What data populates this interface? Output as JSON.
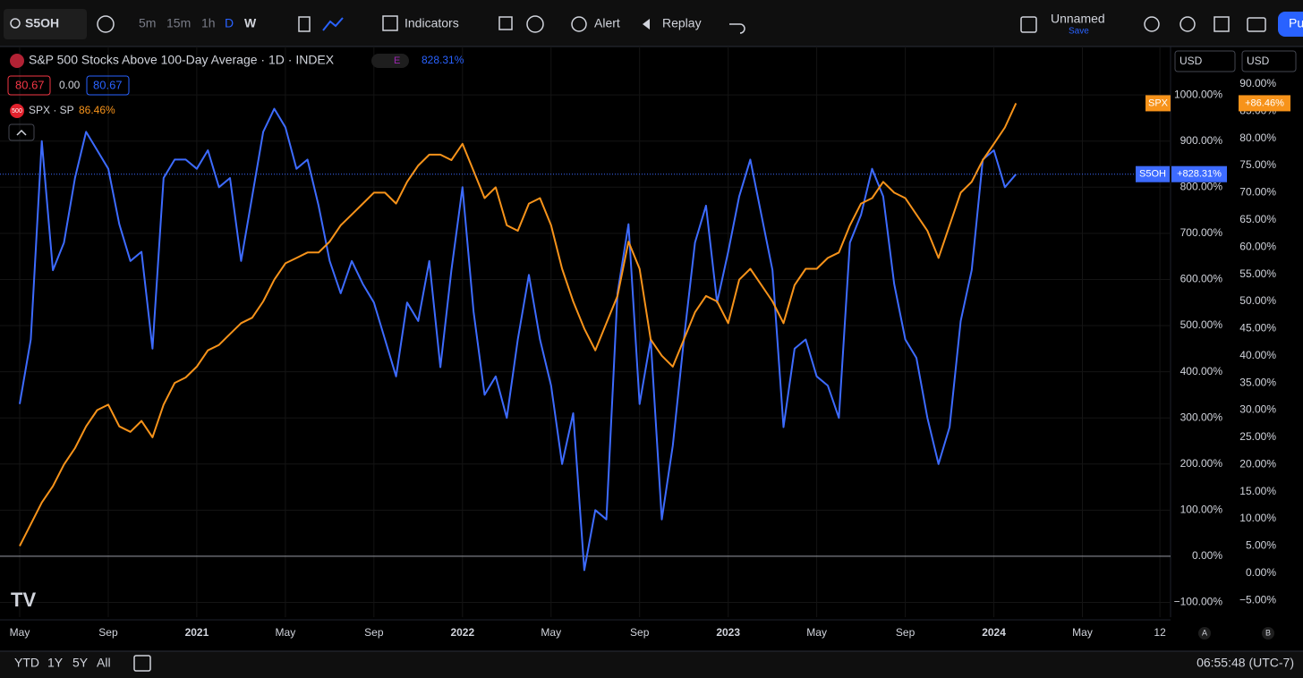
{
  "toolbar": {
    "symbol": "S5OH",
    "intervals": [
      "5m",
      "15m",
      "1h",
      "D",
      "W"
    ],
    "indicators": "Indicators",
    "alert": "Alert",
    "replay": "Replay",
    "layout_name": "Unnamed",
    "save": "Save",
    "publish": "Pu"
  },
  "legend": {
    "title": "S&P 500 Stocks Above 100-Day Average · 1D · INDEX",
    "event": "E",
    "change": "828.31%",
    "open": "80.67",
    "mid": "0.00",
    "close": "80.67",
    "compare_icon": "500",
    "compare": "SPX · SP",
    "compare_change": "86.46%",
    "currency_1": "USD",
    "currency_2": "USD"
  },
  "price_labels": {
    "spx_name": "SPX",
    "spx_value": "+86.46%",
    "s5oh_name": "S5OH",
    "s5oh_value": "+828.31%"
  },
  "chart_data": {
    "type": "line",
    "categories": [
      "May",
      null,
      null,
      null,
      null,
      null,
      null,
      null,
      "Sep",
      null,
      null,
      null,
      null,
      null,
      null,
      null,
      "2021",
      null,
      null,
      null,
      null,
      null,
      null,
      null,
      "May",
      null,
      null,
      null,
      null,
      null,
      null,
      null,
      "Sep",
      null,
      null,
      null,
      null,
      null,
      null,
      null,
      "2022",
      null,
      null,
      null,
      null,
      null,
      null,
      null,
      "May",
      null,
      null,
      null,
      null,
      null,
      null,
      null,
      "Sep",
      null,
      null,
      null,
      null,
      null,
      null,
      null,
      "2023",
      null,
      null,
      null,
      null,
      null,
      null,
      null,
      "May",
      null,
      null,
      null,
      null,
      null,
      null,
      null,
      "Sep",
      null,
      null,
      null,
      null,
      null,
      null,
      null,
      "2024",
      null,
      null,
      null,
      null,
      null,
      null,
      null,
      "May",
      null,
      null,
      null,
      null,
      null,
      null,
      "12"
    ],
    "series": [
      {
        "name": "S5OH",
        "color": "#3d6bff",
        "axis": "y",
        "values": [
          330,
          470,
          900,
          620,
          680,
          820,
          920,
          880,
          840,
          720,
          640,
          660,
          450,
          820,
          860,
          860,
          840,
          880,
          800,
          820,
          640,
          780,
          920,
          970,
          930,
          840,
          860,
          760,
          640,
          570,
          640,
          590,
          550,
          470,
          390,
          550,
          510,
          640,
          410,
          620,
          800,
          530,
          350,
          390,
          300,
          470,
          610,
          470,
          370,
          200,
          310,
          -30,
          100,
          80,
          570,
          720,
          330,
          470,
          80,
          240,
          470,
          680,
          760,
          550,
          660,
          780,
          860,
          740,
          620,
          280,
          450,
          470,
          390,
          370,
          300,
          680,
          740,
          840,
          780,
          590,
          470,
          430,
          300,
          200,
          280,
          510,
          620,
          860,
          880,
          800,
          828.31,
          null,
          null,
          null,
          null,
          null,
          null,
          null,
          null,
          null,
          null,
          null,
          null,
          null
        ]
      },
      {
        "name": "SPX",
        "color": "#f7931a",
        "axis": "y2",
        "values": [
          5,
          9,
          13,
          16,
          20,
          23,
          27,
          30,
          31,
          27,
          26,
          28,
          25,
          31,
          35,
          36,
          38,
          41,
          42,
          44,
          46,
          47,
          50,
          54,
          57,
          58,
          59,
          59,
          61,
          64,
          66,
          68,
          70,
          70,
          68,
          72,
          75,
          77,
          77,
          76,
          79,
          74,
          69,
          71,
          64,
          63,
          68,
          69,
          64,
          56,
          50,
          45,
          41,
          46,
          51,
          61,
          56,
          43,
          40,
          38,
          43,
          48,
          51,
          50,
          46,
          54,
          56,
          53,
          50,
          46,
          53,
          56,
          56,
          58,
          59,
          64,
          68,
          69,
          72,
          70,
          69,
          66,
          63,
          58,
          64,
          70,
          72,
          76,
          79,
          82,
          86.46,
          null,
          null,
          null,
          null,
          null,
          null,
          null,
          null,
          null,
          null,
          null,
          null,
          null
        ]
      }
    ],
    "ylim": [
      -132,
      1105
    ],
    "yticks": [
      {
        "value": -100,
        "label": "−100.00%"
      },
      {
        "value": 0,
        "label": "0.00%"
      },
      {
        "value": 100,
        "label": "100.00%"
      },
      {
        "value": 200,
        "label": "200.00%"
      },
      {
        "value": 300,
        "label": "300.00%"
      },
      {
        "value": 400,
        "label": "400.00%"
      },
      {
        "value": 500,
        "label": "500.00%"
      },
      {
        "value": 600,
        "label": "600.00%"
      },
      {
        "value": 700,
        "label": "700.00%"
      },
      {
        "value": 800,
        "label": "800.00%"
      },
      {
        "value": 900,
        "label": "900.00%"
      },
      {
        "value": 1000,
        "label": "1000.00%"
      }
    ],
    "y2lim": [
      -8.1,
      96.9
    ],
    "y2ticks": [
      {
        "value": -5,
        "label": "−5.00%"
      },
      {
        "value": 0,
        "label": "0.00%"
      },
      {
        "value": 5,
        "label": "5.00%"
      },
      {
        "value": 10,
        "label": "10.00%"
      },
      {
        "value": 15,
        "label": "15.00%"
      },
      {
        "value": 20,
        "label": "20.00%"
      },
      {
        "value": 25,
        "label": "25.00%"
      },
      {
        "value": 30,
        "label": "30.00%"
      },
      {
        "value": 35,
        "label": "35.00%"
      },
      {
        "value": 40,
        "label": "40.00%"
      },
      {
        "value": 45,
        "label": "45.00%"
      },
      {
        "value": 50,
        "label": "50.00%"
      },
      {
        "value": 55,
        "label": "55.00%"
      },
      {
        "value": 60,
        "label": "60.00%"
      },
      {
        "value": 65,
        "label": "65.00%"
      },
      {
        "value": 70,
        "label": "70.00%"
      },
      {
        "value": 75,
        "label": "75.00%"
      },
      {
        "value": 80,
        "label": "80.00%"
      },
      {
        "value": 85,
        "label": "85.00%"
      },
      {
        "value": 90,
        "label": "90.00%"
      }
    ],
    "grid": true
  },
  "bottom_bar": {
    "ranges": [
      "YTD",
      "1Y",
      "5Y",
      "All"
    ],
    "time": "06:55:48 (UTC-7)",
    "axis_buttons": [
      "A",
      "B"
    ]
  }
}
